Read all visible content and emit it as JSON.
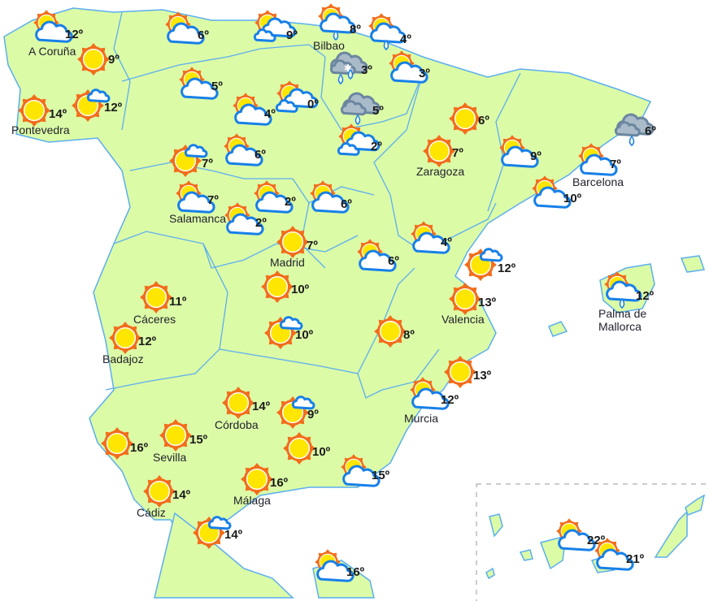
{
  "colors": {
    "land": "#dcfba7",
    "border": "#5aaef0",
    "sun": "#ffe600",
    "sun_rays": "#f26d1b",
    "cloud_outline": "#1780e8",
    "storm_cloud": "#a9bac8"
  },
  "stations": [
    {
      "icon": "sun-cloud",
      "temp": "12º",
      "city": "A Coruña"
    },
    {
      "icon": "sun",
      "temp": "9º"
    },
    {
      "icon": "sun",
      "temp": "14º",
      "city": "Pontevedra"
    },
    {
      "icon": "sun-small-cloud",
      "temp": "12º"
    },
    {
      "icon": "sun-cloud",
      "temp": "6º"
    },
    {
      "icon": "sun-two-clouds",
      "temp": "9º"
    },
    {
      "icon": "sun-cloud-rain",
      "temp": "8º",
      "city": "Bilbao"
    },
    {
      "icon": "sun-cloud-rain",
      "temp": "4º"
    },
    {
      "icon": "storm-snow-rain",
      "temp": "3º"
    },
    {
      "icon": "sun-cloud",
      "temp": "3º"
    },
    {
      "icon": "sun-cloud",
      "temp": "5º"
    },
    {
      "icon": "sun-cloud",
      "temp": "4º"
    },
    {
      "icon": "sun-two-clouds",
      "temp": "0º"
    },
    {
      "icon": "gray-cloud-rain",
      "temp": "5º"
    },
    {
      "icon": "sun-two-clouds",
      "temp": "2º"
    },
    {
      "icon": "sun",
      "temp": "6º"
    },
    {
      "icon": "sun",
      "temp": "7º",
      "city": "Zaragoza"
    },
    {
      "icon": "sun-cloud",
      "temp": "9º"
    },
    {
      "icon": "gray-cloud-rain",
      "temp": "6º"
    },
    {
      "icon": "sun-cloud",
      "temp": "7º",
      "city": "Barcelona"
    },
    {
      "icon": "sun-cloud",
      "temp": "10º"
    },
    {
      "icon": "sun-small-cloud",
      "temp": "7º"
    },
    {
      "icon": "sun-cloud",
      "temp": "6º"
    },
    {
      "icon": "sun-cloud",
      "temp": "7º",
      "city": "Salamanca"
    },
    {
      "icon": "sun-cloud",
      "temp": "2º"
    },
    {
      "icon": "sun-cloud",
      "temp": "2º"
    },
    {
      "icon": "sun-cloud",
      "temp": "6º"
    },
    {
      "icon": "sun",
      "temp": "7º",
      "city": "Madrid"
    },
    {
      "icon": "sun-cloud",
      "temp": "4º"
    },
    {
      "icon": "sun-cloud",
      "temp": "6º"
    },
    {
      "icon": "sun-small-cloud",
      "temp": "12º"
    },
    {
      "icon": "sun",
      "temp": "10º"
    },
    {
      "icon": "sun",
      "temp": "11º",
      "city": "Cáceres"
    },
    {
      "icon": "sun",
      "temp": "13º",
      "city": "Valencia"
    },
    {
      "icon": "sun-cloud-rain",
      "temp": "12º",
      "city": "Palma de Mallorca"
    },
    {
      "icon": "sun",
      "temp": "12º",
      "city": "Badajoz"
    },
    {
      "icon": "sun-small-cloud",
      "temp": "10º"
    },
    {
      "icon": "sun",
      "temp": "8º"
    },
    {
      "icon": "sun",
      "temp": "13º"
    },
    {
      "icon": "sun-cloud",
      "temp": "12º",
      "city": "Murcia"
    },
    {
      "icon": "sun",
      "temp": "14º",
      "city": "Córdoba"
    },
    {
      "icon": "sun-small-cloud",
      "temp": "9º"
    },
    {
      "icon": "sun",
      "temp": "16º"
    },
    {
      "icon": "sun",
      "temp": "15º",
      "city": "Sevilla"
    },
    {
      "icon": "sun",
      "temp": "10º"
    },
    {
      "icon": "sun-cloud",
      "temp": "15º"
    },
    {
      "icon": "sun",
      "temp": "16º",
      "city": "Málaga"
    },
    {
      "icon": "sun",
      "temp": "14º",
      "city": "Cádiz"
    },
    {
      "icon": "sun-small-cloud",
      "temp": "14º"
    },
    {
      "icon": "sun-cloud",
      "temp": "16º"
    },
    {
      "icon": "sun-cloud",
      "temp": "22º"
    },
    {
      "icon": "sun-cloud",
      "temp": "21º"
    }
  ]
}
